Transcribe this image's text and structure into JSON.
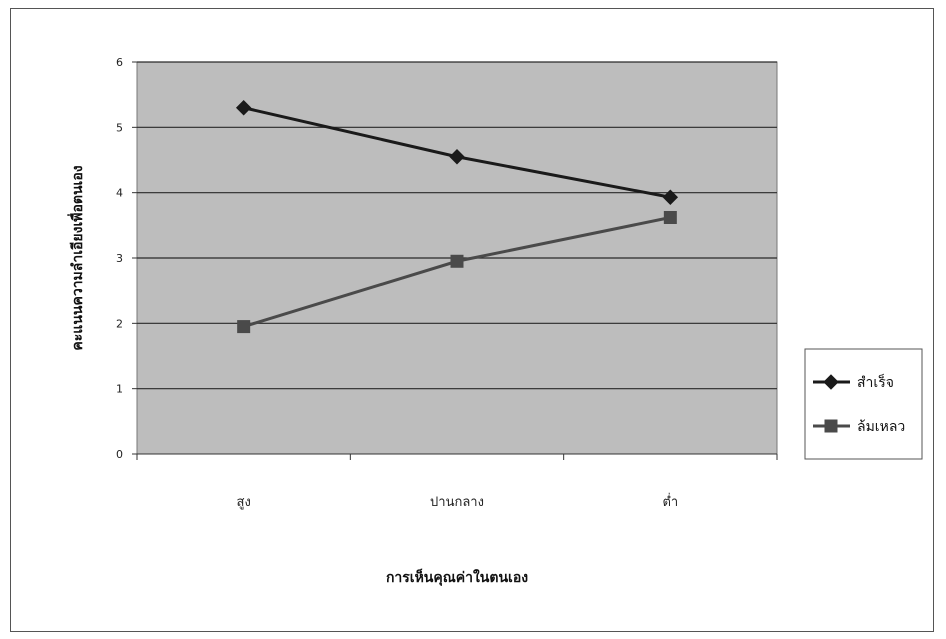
{
  "chart_data": {
    "type": "line",
    "categories": [
      "สูง",
      "ปานกลาง",
      "ต่ำ"
    ],
    "series": [
      {
        "name": "สำเร็จ",
        "values": [
          5.3,
          4.55,
          3.93
        ],
        "color": "#1a1a1a",
        "marker": "diamond"
      },
      {
        "name": "ล้มเหลว",
        "values": [
          1.95,
          2.95,
          3.62
        ],
        "color": "#4a4a4a",
        "marker": "square"
      }
    ],
    "xlabel": "การเห็นคุณค่าในตนเอง",
    "ylabel": "คะแนนความลำเอียงเพื่อตนเอง",
    "ylim": [
      0,
      6
    ],
    "yticks": [
      "0",
      "1",
      "2",
      "3",
      "4",
      "5",
      "6"
    ],
    "grid": true,
    "legend_position": "right",
    "plot_background": "#bdbdbd"
  }
}
